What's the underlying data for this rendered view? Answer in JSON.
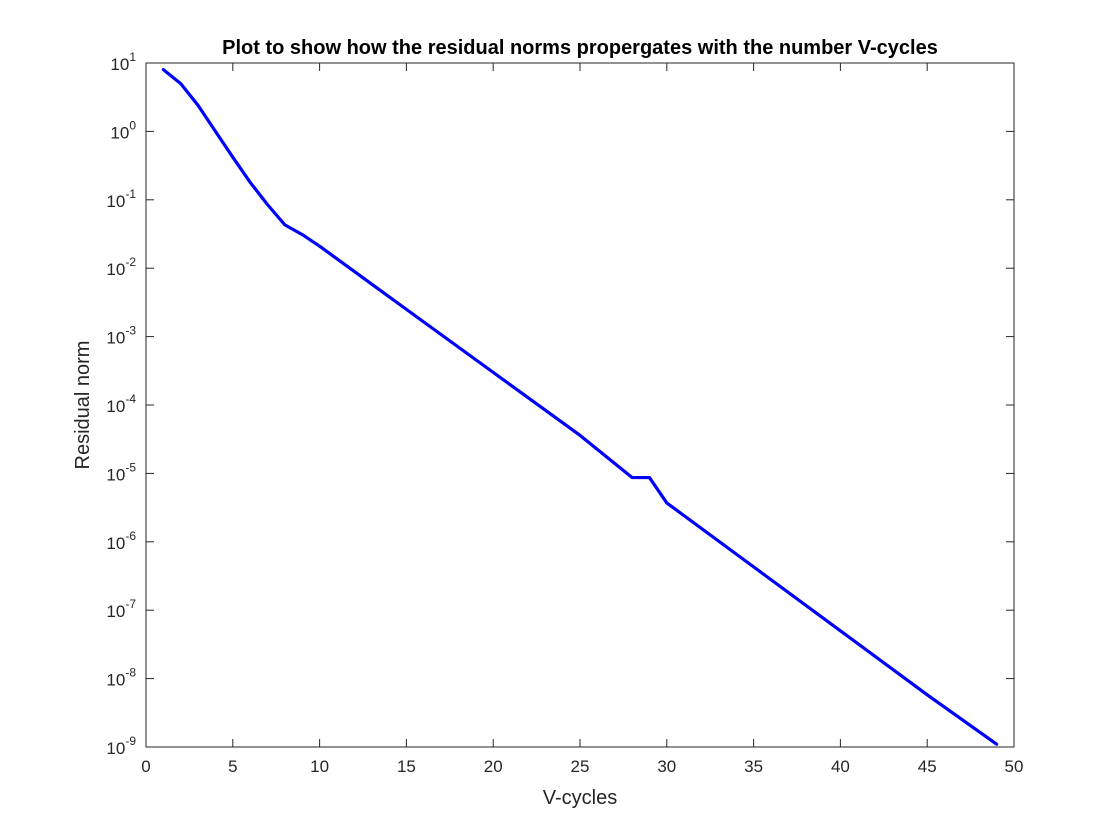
{
  "chart_data": {
    "type": "line",
    "title": "Plot to show how the residual norms propergates with the number V-cycles",
    "xlabel": "V-cycles",
    "ylabel": "Residual norm",
    "xlim": [
      0,
      50
    ],
    "ylim_exponent": [
      -9,
      1
    ],
    "yscale": "log",
    "x_ticks": [
      0,
      5,
      10,
      15,
      20,
      25,
      30,
      35,
      40,
      45,
      50
    ],
    "y_ticks": [
      {
        "base": "10",
        "exp": "-9"
      },
      {
        "base": "10",
        "exp": "-8"
      },
      {
        "base": "10",
        "exp": "-7"
      },
      {
        "base": "10",
        "exp": "-6"
      },
      {
        "base": "10",
        "exp": "-5"
      },
      {
        "base": "10",
        "exp": "-4"
      },
      {
        "base": "10",
        "exp": "-3"
      },
      {
        "base": "10",
        "exp": "-2"
      },
      {
        "base": "10",
        "exp": "-1"
      },
      {
        "base": "10",
        "exp": "0"
      },
      {
        "base": "10",
        "exp": "1"
      }
    ],
    "grid": false,
    "line_color": "#0000ff",
    "series": [
      {
        "x": [
          1,
          2,
          3,
          4,
          5,
          6,
          7,
          8,
          9,
          10,
          15,
          20,
          25,
          28,
          29,
          30,
          35,
          40,
          45,
          49
        ],
        "y": [
          8,
          5,
          2.4,
          1.0,
          0.42,
          0.18,
          0.085,
          0.043,
          0.031,
          0.021,
          0.0025,
          0.0003,
          3.6e-05,
          8.7e-06,
          8.7e-06,
          3.7e-06,
          4.3e-07,
          5e-08,
          5.8e-09,
          1.1e-09
        ]
      }
    ]
  }
}
